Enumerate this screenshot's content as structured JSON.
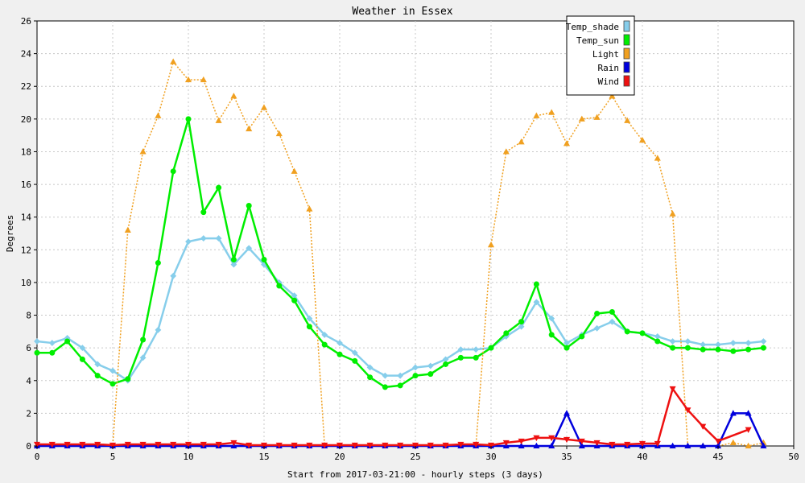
{
  "chart_data": {
    "type": "line",
    "title": "Weather in Essex",
    "xlabel": "Start from 2017-03-21:00 - hourly steps (3 days)",
    "ylabel": "Degrees",
    "xlim": [
      0,
      50
    ],
    "ylim": [
      0,
      26
    ],
    "x_ticks": [
      0,
      5,
      10,
      15,
      20,
      25,
      30,
      35,
      40,
      45,
      50
    ],
    "y_ticks": [
      0,
      2,
      4,
      6,
      8,
      10,
      12,
      14,
      16,
      18,
      20,
      22,
      24,
      26
    ],
    "grid": true,
    "legend_position": "top-right",
    "x": [
      0,
      1,
      2,
      3,
      4,
      5,
      6,
      7,
      8,
      9,
      10,
      11,
      12,
      13,
      14,
      15,
      16,
      17,
      18,
      19,
      20,
      21,
      22,
      23,
      24,
      25,
      26,
      27,
      28,
      29,
      30,
      31,
      32,
      33,
      34,
      35,
      36,
      37,
      38,
      39,
      40,
      41,
      42,
      43,
      44,
      45,
      46,
      47,
      48
    ],
    "series": [
      {
        "name": "Temp_shade",
        "color": "#87ceeb",
        "style": "solid",
        "marker": "diamond",
        "values": [
          6.4,
          6.3,
          6.6,
          6.0,
          5.0,
          4.6,
          4.0,
          5.4,
          7.1,
          10.4,
          12.5,
          12.7,
          12.7,
          11.1,
          12.1,
          11.1,
          10.0,
          9.2,
          7.8,
          6.8,
          6.3,
          5.7,
          4.8,
          4.3,
          4.3,
          4.8,
          4.9,
          5.3,
          5.9,
          5.9,
          6.0,
          6.7,
          7.3,
          8.8,
          7.8,
          6.3,
          6.8,
          7.2,
          7.6,
          7.0,
          6.9,
          6.7,
          6.4,
          6.4,
          6.2,
          6.2,
          6.3,
          6.3,
          6.4
        ]
      },
      {
        "name": "Temp_sun",
        "color": "#00ee00",
        "style": "solid",
        "marker": "circle",
        "values": [
          5.7,
          5.7,
          6.4,
          5.3,
          4.3,
          3.8,
          4.1,
          6.5,
          11.2,
          16.8,
          20.0,
          14.3,
          15.8,
          11.4,
          14.7,
          11.4,
          9.8,
          8.9,
          7.3,
          6.2,
          5.6,
          5.2,
          4.2,
          3.6,
          3.7,
          4.3,
          4.4,
          5.0,
          5.4,
          5.4,
          6.0,
          6.9,
          7.6,
          9.9,
          6.8,
          6.0,
          6.7,
          8.1,
          8.2,
          7.0,
          6.9,
          6.4,
          6.0,
          6.0,
          5.9,
          5.9,
          5.8,
          5.9,
          6.0
        ]
      },
      {
        "name": "Light",
        "color": "#f0a020",
        "style": "dotted",
        "marker": "triangle",
        "values": [
          0,
          0,
          0,
          0,
          0,
          0,
          13.2,
          18.0,
          20.2,
          23.5,
          22.4,
          22.4,
          19.9,
          21.4,
          19.4,
          20.7,
          19.1,
          16.8,
          14.5,
          0,
          0,
          0,
          0,
          0,
          0,
          0,
          0,
          0,
          0,
          0,
          12.3,
          18.0,
          18.6,
          20.2,
          20.4,
          18.5,
          20.0,
          20.1,
          21.4,
          19.9,
          18.7,
          17.6,
          14.2,
          0,
          0,
          0,
          0.2,
          0,
          0.2
        ]
      },
      {
        "name": "Rain",
        "color": "#0000dd",
        "style": "solid",
        "marker": "triangle",
        "values": [
          0,
          0,
          0,
          0,
          0,
          0,
          0,
          0,
          0,
          0,
          0,
          0,
          0,
          0,
          0,
          0,
          0,
          0,
          0,
          0,
          0,
          0,
          0,
          0,
          0,
          0,
          0,
          0,
          0,
          0,
          0,
          0,
          0,
          0,
          0,
          2.0,
          0,
          0,
          0,
          0,
          0,
          0,
          0,
          0,
          0,
          0,
          2.0,
          2.0,
          0
        ]
      },
      {
        "name": "Wind",
        "color": "#ee1111",
        "style": "solid",
        "marker": "triangle-down",
        "values": [
          0.1,
          0.1,
          0.1,
          0.1,
          0.1,
          0.05,
          0.1,
          0.1,
          0.1,
          0.1,
          0.1,
          0.1,
          0.1,
          0.2,
          0.05,
          0.05,
          0.05,
          0.05,
          0.05,
          0.05,
          0.05,
          0.05,
          0.05,
          0.05,
          0.05,
          0.05,
          0.05,
          0.05,
          0.1,
          0.1,
          0.05,
          0.2,
          0.3,
          0.5,
          0.5,
          0.4,
          0.3,
          0.2,
          0.1,
          0.1,
          0.15,
          0.15,
          3.5,
          2.2,
          1.2,
          0.3,
          null,
          1.0,
          null
        ]
      }
    ]
  }
}
